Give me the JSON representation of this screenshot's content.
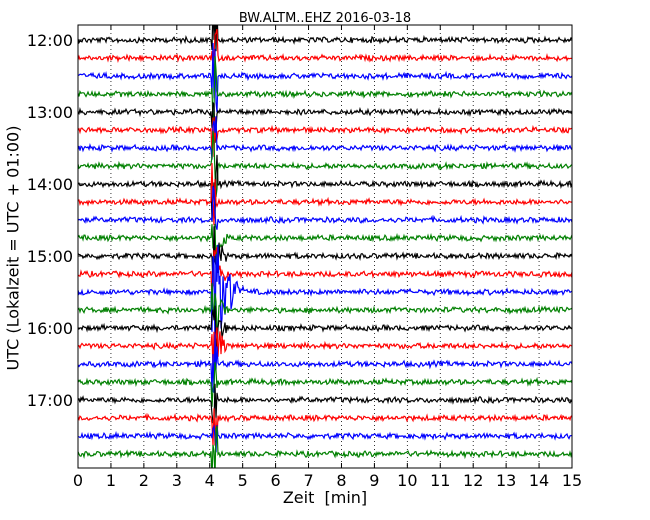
{
  "chart_data": {
    "type": "line",
    "title": "BW.ALTM..EHZ 2016-03-18",
    "xlabel": "Zeit  [min]",
    "ylabel": "UTC (Lokalzeit = UTC + 01:00)",
    "xlim": [
      0,
      15
    ],
    "x_ticks": [
      "0",
      "1",
      "2",
      "3",
      "4",
      "5",
      "6",
      "7",
      "8",
      "9",
      "10",
      "11",
      "12",
      "13",
      "14",
      "15"
    ],
    "y_ticks": [
      "12:00",
      "13:00",
      "14:00",
      "15:00",
      "16:00",
      "17:00"
    ],
    "y_range_hours": [
      "12:00",
      "18:00"
    ],
    "trace_interval_minutes": 15,
    "grid": "vertical dotted at each minute",
    "series_colors": [
      "#000000",
      "#ff0000",
      "#0000ff",
      "#008000"
    ],
    "traces": [
      {
        "start": "12:00",
        "color": "#000000"
      },
      {
        "start": "12:15",
        "color": "#ff0000"
      },
      {
        "start": "12:30",
        "color": "#0000ff"
      },
      {
        "start": "12:45",
        "color": "#008000"
      },
      {
        "start": "13:00",
        "color": "#000000"
      },
      {
        "start": "13:15",
        "color": "#ff0000"
      },
      {
        "start": "13:30",
        "color": "#0000ff"
      },
      {
        "start": "13:45",
        "color": "#008000"
      },
      {
        "start": "14:00",
        "color": "#000000"
      },
      {
        "start": "14:15",
        "color": "#ff0000"
      },
      {
        "start": "14:30",
        "color": "#0000ff"
      },
      {
        "start": "14:45",
        "color": "#008000"
      },
      {
        "start": "15:00",
        "color": "#000000"
      },
      {
        "start": "15:15",
        "color": "#ff0000"
      },
      {
        "start": "15:30",
        "color": "#0000ff"
      },
      {
        "start": "15:45",
        "color": "#008000"
      },
      {
        "start": "16:00",
        "color": "#000000"
      },
      {
        "start": "16:15",
        "color": "#ff0000"
      },
      {
        "start": "16:30",
        "color": "#0000ff"
      },
      {
        "start": "16:45",
        "color": "#008000"
      },
      {
        "start": "17:00",
        "color": "#000000"
      },
      {
        "start": "17:15",
        "color": "#ff0000"
      },
      {
        "start": "17:30",
        "color": "#0000ff"
      },
      {
        "start": "17:45",
        "color": "#008000"
      }
    ],
    "event": {
      "trace_start": "15:30",
      "color": "#0000ff",
      "onset_minute": 4.1,
      "coda_end_minute": 5.1
    }
  }
}
